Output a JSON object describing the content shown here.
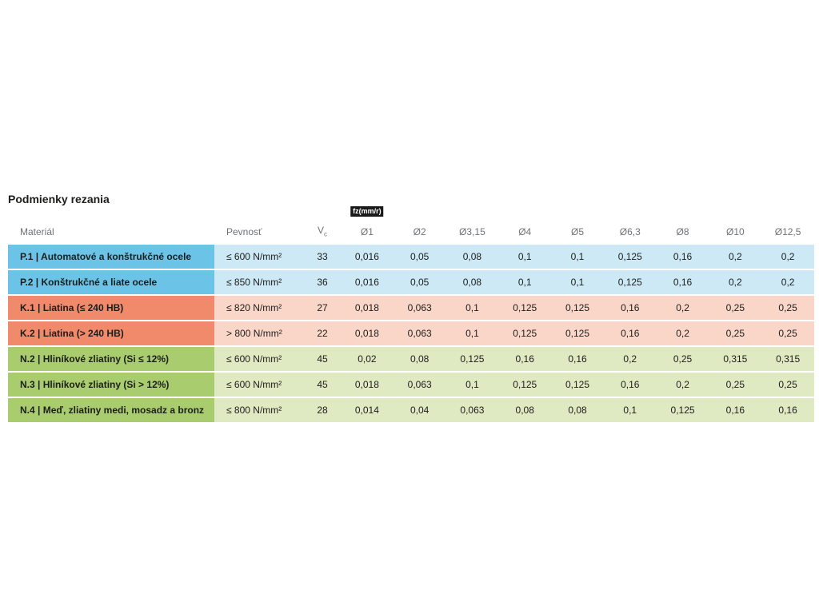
{
  "page": {
    "title": "Podmienky rezania"
  },
  "table": {
    "headers": {
      "material": "Materiál",
      "pevnost": "Pevnosť",
      "vc_main": "V",
      "vc_sub": "c",
      "fz_label": "fz(mm/r)",
      "diameters": [
        "Ø1",
        "Ø2",
        "Ø3,15",
        "Ø4",
        "Ø5",
        "Ø6,3",
        "Ø8",
        "Ø10",
        "Ø12,5"
      ]
    },
    "colors": {
      "group_P_dark": "#6bc4e8",
      "group_P_light": "#cde9f6",
      "group_K_dark": "#f08a6b",
      "group_K_light": "#fad6c8",
      "group_N_dark": "#a9cd6e",
      "group_N_light": "#dfeac3",
      "fz_badge_bg": "#1a1a1a",
      "fz_badge_text": "#ffffff",
      "header_text": "#6f7276",
      "body_text": "#1d1d1b"
    },
    "rows": [
      {
        "material": "P.1 | Automatové a konštrukčné ocele",
        "pevnost": "≤ 600 N/mm²",
        "vc": "33",
        "values": [
          "0,016",
          "0,05",
          "0,08",
          "0,1",
          "0,1",
          "0,125",
          "0,16",
          "0,2",
          "0,2"
        ]
      },
      {
        "material": "P.2 | Konštrukčné a liate ocele",
        "pevnost": "≤ 850 N/mm²",
        "vc": "36",
        "values": [
          "0,016",
          "0,05",
          "0,08",
          "0,1",
          "0,1",
          "0,125",
          "0,16",
          "0,2",
          "0,2"
        ]
      },
      {
        "material": "K.1 | Liatina (≤ 240 HB)",
        "pevnost": "≤ 820 N/mm²",
        "vc": "27",
        "values": [
          "0,018",
          "0,063",
          "0,1",
          "0,125",
          "0,125",
          "0,16",
          "0,2",
          "0,25",
          "0,25"
        ]
      },
      {
        "material": "K.2 | Liatina (> 240 HB)",
        "pevnost": "> 800 N/mm²",
        "vc": "22",
        "values": [
          "0,018",
          "0,063",
          "0,1",
          "0,125",
          "0,125",
          "0,16",
          "0,2",
          "0,25",
          "0,25"
        ]
      },
      {
        "material": "N.2 | Hliníkové zliatiny (Si ≤ 12%)",
        "pevnost": "≤ 600 N/mm²",
        "vc": "45",
        "values": [
          "0,02",
          "0,08",
          "0,125",
          "0,16",
          "0,16",
          "0,2",
          "0,25",
          "0,315",
          "0,315"
        ]
      },
      {
        "material": "N.3 | Hliníkové zliatiny (Si > 12%)",
        "pevnost": "≤ 600 N/mm²",
        "vc": "45",
        "values": [
          "0,018",
          "0,063",
          "0,1",
          "0,125",
          "0,125",
          "0,16",
          "0,2",
          "0,25",
          "0,25"
        ]
      },
      {
        "material": "N.4 | Meď, zliatiny medi, mosadz a bronz",
        "pevnost": "≤ 800 N/mm²",
        "vc": "28",
        "values": [
          "0,014",
          "0,04",
          "0,063",
          "0,08",
          "0,08",
          "0,1",
          "0,125",
          "0,16",
          "0,16"
        ]
      }
    ]
  }
}
